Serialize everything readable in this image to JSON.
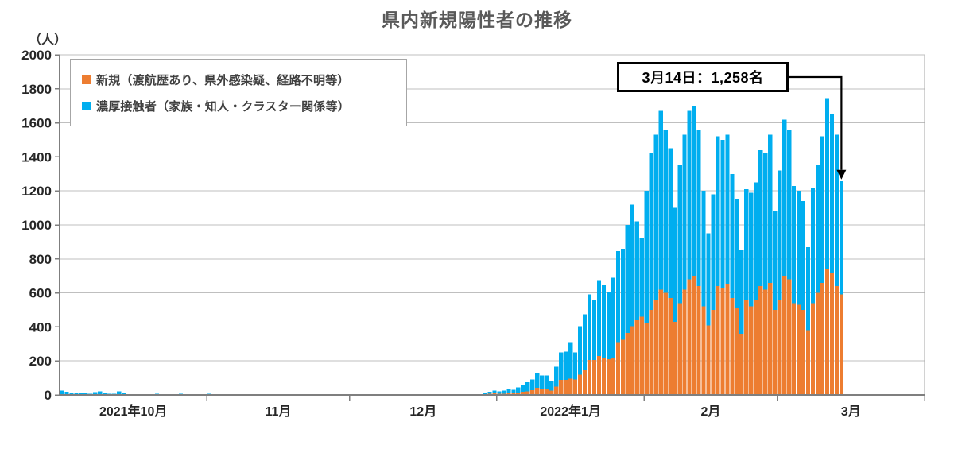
{
  "title": "県内新規陽性者の推移",
  "y_axis": {
    "unit_label": "（人）",
    "ticks": [
      0,
      200,
      400,
      600,
      800,
      1000,
      1200,
      1400,
      1600,
      1800,
      2000
    ]
  },
  "legend": {
    "items": [
      {
        "label": "新規（渡航歴あり、県外感染疑、経路不明等）",
        "color": "#ED7D31"
      },
      {
        "label": "濃厚接触者（家族・知人・クラスター関係等）",
        "color": "#00AEEF"
      }
    ]
  },
  "annotation": {
    "text": "3月14日：1,258名",
    "date_label": "3月14日",
    "value": 1258
  },
  "chart_data": {
    "type": "bar",
    "stacked": true,
    "title": "県内新規陽性者の推移",
    "ylabel": "（人）",
    "ylim": [
      0,
      2000
    ],
    "grid": "horizontal",
    "legend_position": "top-left-inside",
    "month_labels": [
      "2021年10月",
      "11月",
      "12月",
      "2022年1月",
      "2月",
      "3月"
    ],
    "days_per_month": [
      31,
      30,
      31,
      31,
      28,
      31
    ],
    "data_day_count": 165,
    "series": [
      {
        "name": "新規（渡航歴あり、県外感染疑、経路不明等）",
        "color": "#ED7D31",
        "values": [
          5,
          3,
          2,
          2,
          2,
          3,
          1,
          2,
          3,
          2,
          1,
          1,
          3,
          1,
          1,
          0,
          1,
          0,
          0,
          0,
          1,
          0,
          0,
          0,
          0,
          1,
          0,
          0,
          0,
          0,
          0,
          0,
          0,
          0,
          0,
          0,
          0,
          0,
          0,
          0,
          0,
          0,
          0,
          0,
          0,
          0,
          0,
          0,
          0,
          0,
          0,
          0,
          0,
          0,
          0,
          0,
          0,
          0,
          0,
          0,
          0,
          0,
          0,
          0,
          0,
          0,
          0,
          0,
          0,
          0,
          0,
          0,
          0,
          0,
          0,
          0,
          0,
          0,
          0,
          0,
          0,
          0,
          0,
          0,
          0,
          0,
          1,
          1,
          2,
          4,
          8,
          11,
          6,
          8,
          10,
          9,
          14,
          18,
          22,
          28,
          42,
          36,
          32,
          25,
          48,
          88,
          88,
          95,
          90,
          120,
          150,
          205,
          205,
          230,
          215,
          210,
          220,
          310,
          325,
          365,
          405,
          440,
          460,
          420,
          500,
          560,
          620,
          600,
          570,
          430,
          540,
          620,
          680,
          700,
          640,
          520,
          410,
          500,
          640,
          630,
          650,
          570,
          510,
          360,
          560,
          520,
          560,
          640,
          620,
          660,
          500,
          560,
          700,
          680,
          540,
          530,
          500,
          380,
          540,
          600,
          660,
          740,
          720,
          640,
          590
        ]
      },
      {
        "name": "濃厚接触者（家族・知人・クラスター関係等）",
        "color": "#00AEEF",
        "values": [
          20,
          15,
          13,
          10,
          8,
          11,
          7,
          14,
          17,
          10,
          7,
          5,
          19,
          9,
          3,
          3,
          4,
          2,
          3,
          2,
          7,
          2,
          1,
          3,
          1,
          5,
          1,
          1,
          2,
          1,
          1,
          6,
          4,
          3,
          0,
          0,
          2,
          0,
          0,
          3,
          0,
          0,
          2,
          0,
          5,
          0,
          0,
          0,
          0,
          2,
          0,
          0,
          0,
          3,
          0,
          0,
          0,
          0,
          0,
          2,
          0,
          0,
          0,
          0,
          0,
          0,
          0,
          0,
          0,
          0,
          0,
          0,
          0,
          0,
          0,
          0,
          0,
          0,
          0,
          0,
          0,
          0,
          0,
          0,
          0,
          0,
          1,
          2,
          3,
          6,
          10,
          14,
          14,
          17,
          25,
          21,
          31,
          42,
          53,
          62,
          88,
          79,
          83,
          55,
          117,
          162,
          167,
          215,
          160,
          285,
          325,
          385,
          355,
          445,
          430,
          395,
          470,
          535,
          535,
          635,
          715,
          580,
          460,
          780,
          920,
          970,
          1050,
          960,
          880,
          670,
          810,
          910,
          990,
          1000,
          920,
          680,
          540,
          680,
          880,
          870,
          880,
          730,
          640,
          490,
          650,
          670,
          690,
          800,
          800,
          870,
          580,
          760,
          920,
          880,
          690,
          670,
          640,
          490,
          680,
          750,
          860,
          1005,
          930,
          890,
          668
        ]
      }
    ],
    "annotation": {
      "text": "3月14日：1,258名",
      "day_index": 164,
      "value": 1258
    }
  }
}
